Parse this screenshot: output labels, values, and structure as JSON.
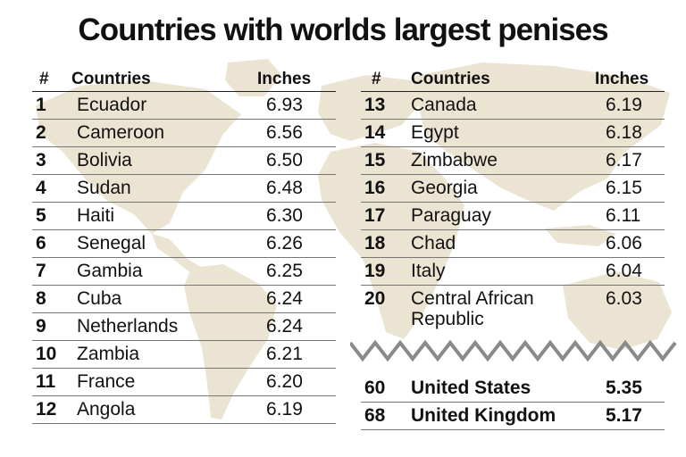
{
  "title": "Countries with worlds largest penises",
  "headers": {
    "rank": "#",
    "country": "Countries",
    "inches": "Inches"
  },
  "left_rows": [
    {
      "rank": "1",
      "country": "Ecuador",
      "inches": "6.93"
    },
    {
      "rank": "2",
      "country": "Cameroon",
      "inches": "6.56"
    },
    {
      "rank": "3",
      "country": "Bolivia",
      "inches": "6.50"
    },
    {
      "rank": "4",
      "country": "Sudan",
      "inches": "6.48"
    },
    {
      "rank": "5",
      "country": "Haiti",
      "inches": "6.30"
    },
    {
      "rank": "6",
      "country": "Senegal",
      "inches": "6.26"
    },
    {
      "rank": "7",
      "country": "Gambia",
      "inches": "6.25"
    },
    {
      "rank": "8",
      "country": "Cuba",
      "inches": "6.24"
    },
    {
      "rank": "9",
      "country": "Netherlands",
      "inches": "6.24"
    },
    {
      "rank": "10",
      "country": "Zambia",
      "inches": "6.21"
    },
    {
      "rank": "11",
      "country": "France",
      "inches": "6.20"
    },
    {
      "rank": "12",
      "country": "Angola",
      "inches": "6.19"
    }
  ],
  "right_rows": [
    {
      "rank": "13",
      "country": "Canada",
      "inches": "6.19"
    },
    {
      "rank": "14",
      "country": "Egypt",
      "inches": "6.18"
    },
    {
      "rank": "15",
      "country": "Zimbabwe",
      "inches": "6.17"
    },
    {
      "rank": "16",
      "country": "Georgia",
      "inches": "6.15"
    },
    {
      "rank": "17",
      "country": "Paraguay",
      "inches": "6.11"
    },
    {
      "rank": "18",
      "country": "Chad",
      "inches": "6.06"
    },
    {
      "rank": "19",
      "country": "Italy",
      "inches": "6.04"
    },
    {
      "rank": "20",
      "country": "Central African Republic",
      "inches": "6.03"
    }
  ],
  "extra_rows": [
    {
      "rank": "60",
      "country": "United States",
      "inches": "5.35"
    },
    {
      "rank": "68",
      "country": "United Kingdom",
      "inches": "5.17"
    }
  ],
  "colors": {
    "map": "#ece4d2",
    "zigzag": "#8a8a8a",
    "text": "#111111"
  }
}
